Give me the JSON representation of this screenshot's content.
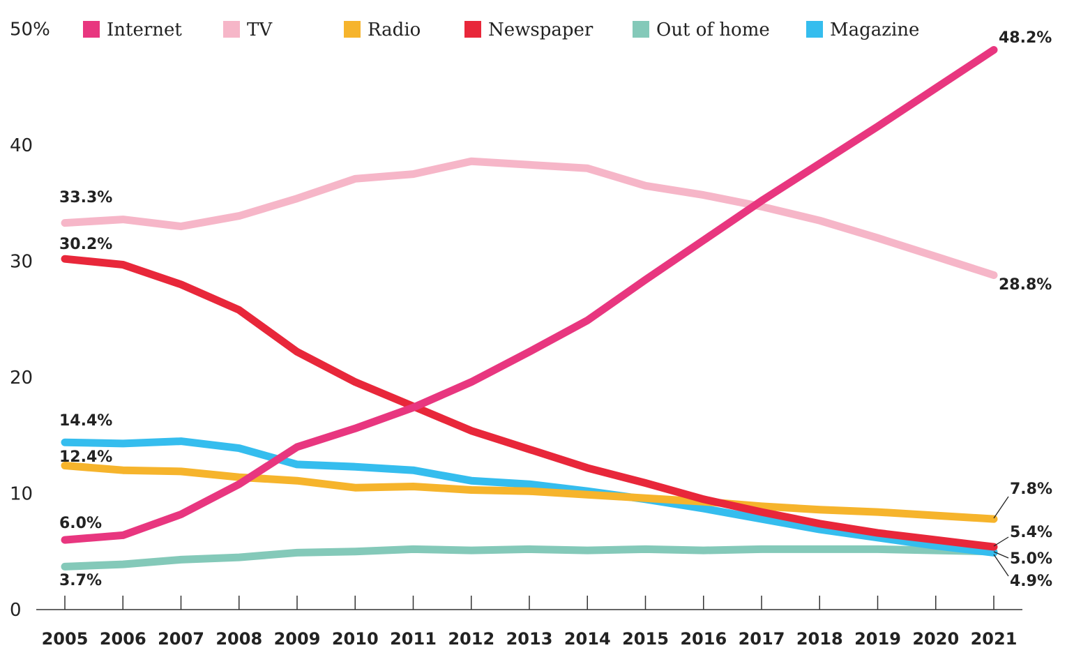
{
  "chart_data": {
    "type": "line",
    "title": "",
    "xlabel": "",
    "ylabel": "",
    "ylim": [
      0,
      50
    ],
    "y_ticks": [
      {
        "value": 0,
        "label": "0"
      },
      {
        "value": 10,
        "label": "10"
      },
      {
        "value": 20,
        "label": "20"
      },
      {
        "value": 30,
        "label": "30"
      },
      {
        "value": 40,
        "label": "40"
      },
      {
        "value": 50,
        "label": "50%"
      }
    ],
    "x": [
      "2005",
      "2006",
      "2007",
      "2008",
      "2009",
      "2010",
      "2011",
      "2012",
      "2013",
      "2014",
      "2015",
      "2016",
      "2017",
      "2018",
      "2019",
      "2020",
      "2021"
    ],
    "grid": false,
    "legend_position": "top",
    "series": [
      {
        "name": "Internet",
        "color": "#e8367f",
        "values": [
          6.0,
          6.4,
          8.2,
          10.8,
          14.0,
          15.6,
          17.4,
          19.6,
          22.2,
          24.9,
          28.4,
          31.8,
          35.2,
          38.4,
          41.6,
          44.9,
          48.2
        ]
      },
      {
        "name": "TV",
        "color": "#f6b6c8",
        "values": [
          33.3,
          33.6,
          33.0,
          33.9,
          35.4,
          37.1,
          37.5,
          38.6,
          38.3,
          38.0,
          36.5,
          35.7,
          34.7,
          33.5,
          32.0,
          30.4,
          28.8
        ]
      },
      {
        "name": "Radio",
        "color": "#f6b42c",
        "values": [
          12.4,
          12.0,
          11.9,
          11.4,
          11.1,
          10.5,
          10.6,
          10.3,
          10.2,
          9.9,
          9.6,
          9.3,
          8.9,
          8.6,
          8.4,
          8.1,
          7.8
        ]
      },
      {
        "name": "Newspaper",
        "color": "#e8273a",
        "values": [
          30.2,
          29.7,
          28.0,
          25.8,
          22.2,
          19.6,
          17.5,
          15.4,
          13.8,
          12.2,
          10.9,
          9.5,
          8.4,
          7.4,
          6.6,
          6.0,
          5.4
        ]
      },
      {
        "name": "Out of home",
        "color": "#84c9b9",
        "values": [
          3.7,
          3.9,
          4.3,
          4.5,
          4.9,
          5.0,
          5.2,
          5.1,
          5.2,
          5.1,
          5.2,
          5.1,
          5.2,
          5.2,
          5.2,
          5.1,
          5.0
        ]
      },
      {
        "name": "Magazine",
        "color": "#35bdee",
        "values": [
          14.4,
          14.3,
          14.5,
          13.9,
          12.5,
          12.3,
          12.0,
          11.1,
          10.8,
          10.2,
          9.5,
          8.7,
          7.8,
          6.9,
          6.2,
          5.5,
          4.9
        ]
      }
    ],
    "annotations": [
      {
        "series": "TV",
        "text": "33.3%",
        "year": "2005"
      },
      {
        "series": "Newspaper",
        "text": "30.2%",
        "year": "2005"
      },
      {
        "series": "Magazine",
        "text": "14.4%",
        "year": "2005"
      },
      {
        "series": "Radio",
        "text": "12.4%",
        "year": "2005"
      },
      {
        "series": "Internet",
        "text": "6.0%",
        "year": "2005"
      },
      {
        "series": "Out of home",
        "text": "3.7%",
        "year": "2005"
      },
      {
        "series": "Internet",
        "text": "48.2%",
        "year": "2021"
      },
      {
        "series": "TV",
        "text": "28.8%",
        "year": "2021"
      },
      {
        "series": "Radio",
        "text": "7.8%",
        "year": "2021"
      },
      {
        "series": "Newspaper",
        "text": "5.4%",
        "year": "2021"
      },
      {
        "series": "Out of home",
        "text": "5.0%",
        "year": "2021"
      },
      {
        "series": "Magazine",
        "text": "4.9%",
        "year": "2021"
      }
    ]
  }
}
